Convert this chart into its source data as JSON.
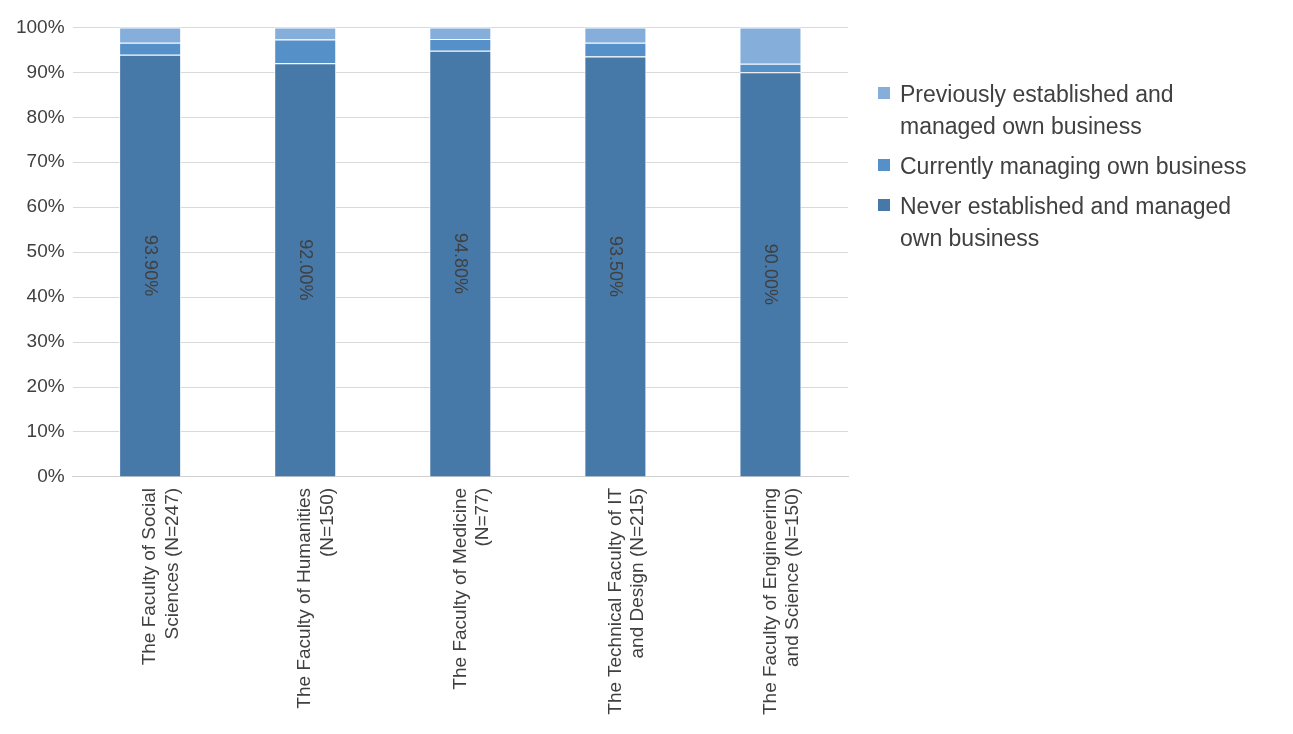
{
  "chart_data": {
    "type": "bar",
    "stacked": true,
    "categories": [
      "The Faculty of Social Sciences (N=247)",
      "The Faculty of Humanities (N=150)",
      "The Faculty of Medicine (N=77)",
      "The Technical Faculty of IT and Design (N=215)",
      "The Faculty of Engineering and Science (N=150)"
    ],
    "series": [
      {
        "name": "Never established and managed own business",
        "color": "#4678a8",
        "values": [
          93.9,
          92.0,
          94.8,
          93.5,
          90.0
        ],
        "value_labels": [
          "93.90%",
          "92.00%",
          "94.80%",
          "93.50%",
          "90.00%"
        ]
      },
      {
        "name": "Currently managing own business",
        "color": "#5590c8",
        "values": [
          2.7,
          5.3,
          2.6,
          3.1,
          1.9
        ]
      },
      {
        "name": "Previously established and managed own business",
        "color": "#85aedb",
        "values": [
          3.4,
          2.7,
          2.6,
          3.4,
          8.1
        ]
      }
    ],
    "ylim": [
      0,
      100
    ],
    "yticks": [
      {
        "value": 0,
        "label": "0%"
      },
      {
        "value": 10,
        "label": "10%"
      },
      {
        "value": 20,
        "label": "20%"
      },
      {
        "value": 30,
        "label": "30%"
      },
      {
        "value": 40,
        "label": "40%"
      },
      {
        "value": 50,
        "label": "50%"
      },
      {
        "value": 60,
        "label": "60%"
      },
      {
        "value": 70,
        "label": "70%"
      },
      {
        "value": 80,
        "label": "80%"
      },
      {
        "value": 90,
        "label": "90%"
      },
      {
        "value": 100,
        "label": "100%"
      }
    ],
    "grid": "y",
    "legend": "right"
  }
}
